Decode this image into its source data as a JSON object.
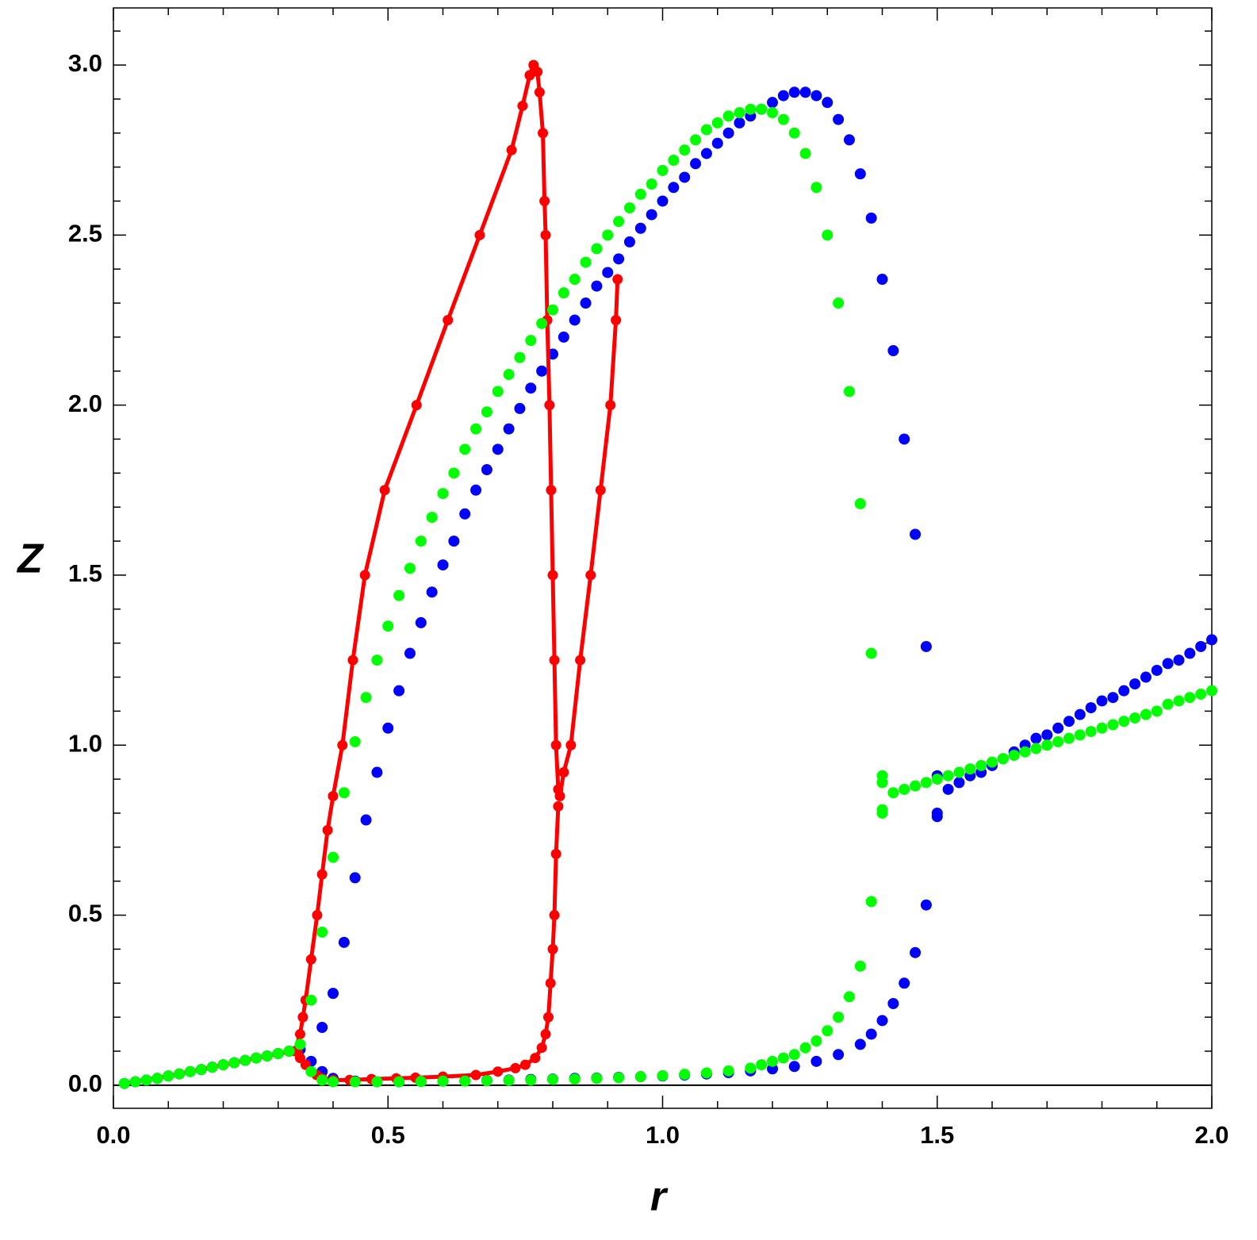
{
  "chart_data": {
    "type": "scatter",
    "x_label": "r",
    "y_label": "Z",
    "xlim": [
      0,
      2
    ],
    "ylim": [
      -0.068,
      3.168
    ],
    "xticks": [
      {
        "value": 0,
        "label": "0.0"
      },
      0.5,
      {
        "value": 1,
        "label": "1.0"
      },
      1.5,
      {
        "value": 2,
        "label": "2.0"
      }
    ],
    "yticks": [
      {
        "value": 0,
        "label": "0.0"
      },
      0.5,
      {
        "value": 1,
        "label": "1.0"
      },
      1.5,
      {
        "value": 2,
        "label": "2.0"
      },
      2.5,
      {
        "value": 3,
        "label": "3.0"
      }
    ],
    "xminor_ticks": [
      0.1,
      0.2,
      0.3,
      0.4,
      0.6,
      0.7,
      0.8,
      0.9,
      1.1,
      1.2,
      1.3,
      1.4,
      1.6,
      1.7,
      1.8,
      1.9
    ],
    "yminor_ticks": [
      0.1,
      0.2,
      0.3,
      0.4,
      0.6,
      0.7,
      0.8,
      0.9,
      1.1,
      1.2,
      1.3,
      1.4,
      1.6,
      1.7,
      1.8,
      1.9,
      2.1,
      2.2,
      2.3,
      2.4,
      2.6,
      2.7,
      2.8,
      2.9,
      3.1
    ],
    "zero_line": true,
    "series": [
      {
        "color": "#0000ff",
        "line": false,
        "x": [
          0.02,
          0.04,
          0.06,
          0.08,
          0.1,
          0.12,
          0.14,
          0.16,
          0.18,
          0.2,
          0.22,
          0.24,
          0.26,
          0.28,
          0.3,
          0.32,
          0.34,
          0.36,
          0.38,
          0.4,
          0.44,
          0.48,
          0.52,
          0.56,
          0.6,
          0.64,
          0.68,
          0.72,
          0.76,
          0.8,
          0.84,
          0.88,
          0.92,
          0.96,
          1.0,
          1.04,
          1.08,
          1.12,
          1.16,
          1.2,
          1.24,
          1.28,
          1.32,
          1.36,
          1.38,
          1.4,
          1.42,
          1.44,
          1.46,
          1.48,
          0.38,
          0.4,
          0.42,
          0.44,
          0.46,
          0.48,
          0.5,
          0.52,
          0.54,
          0.56,
          0.58,
          0.6,
          0.62,
          0.64,
          0.66,
          0.68,
          0.7,
          0.72,
          0.74,
          0.76,
          0.78,
          0.8,
          0.82,
          0.84,
          0.86,
          0.88,
          0.9,
          0.92,
          0.94,
          0.96,
          0.98,
          1.0,
          1.02,
          1.04,
          1.06,
          1.08,
          1.1,
          1.12,
          1.14,
          1.16,
          1.18,
          1.2,
          1.22,
          1.24,
          1.26,
          1.28,
          1.3,
          1.32,
          1.34,
          1.36,
          1.38,
          1.4,
          1.42,
          1.44,
          1.46,
          1.48,
          1.5,
          1.5,
          1.5,
          1.52,
          1.54,
          1.56,
          1.58,
          1.6,
          1.62,
          1.64,
          1.66,
          1.68,
          1.7,
          1.72,
          1.74,
          1.76,
          1.78,
          1.8,
          1.82,
          1.84,
          1.86,
          1.88,
          1.9,
          1.92,
          1.94,
          1.96,
          1.98,
          2.0
        ],
        "values": [
          0.005,
          0.01,
          0.015,
          0.02,
          0.027,
          0.033,
          0.04,
          0.046,
          0.053,
          0.06,
          0.066,
          0.073,
          0.08,
          0.086,
          0.093,
          0.1,
          0.105,
          0.07,
          0.04,
          0.02,
          0.012,
          0.01,
          0.01,
          0.011,
          0.012,
          0.013,
          0.014,
          0.015,
          0.017,
          0.018,
          0.02,
          0.021,
          0.023,
          0.025,
          0.027,
          0.03,
          0.033,
          0.037,
          0.042,
          0.048,
          0.055,
          0.07,
          0.09,
          0.12,
          0.15,
          0.19,
          0.24,
          0.3,
          0.39,
          0.53,
          0.17,
          0.27,
          0.42,
          0.61,
          0.78,
          0.92,
          1.05,
          1.16,
          1.27,
          1.36,
          1.45,
          1.53,
          1.6,
          1.68,
          1.75,
          1.81,
          1.87,
          1.93,
          1.99,
          2.05,
          2.1,
          2.15,
          2.2,
          2.25,
          2.3,
          2.35,
          2.39,
          2.43,
          2.48,
          2.52,
          2.56,
          2.6,
          2.64,
          2.67,
          2.71,
          2.74,
          2.77,
          2.8,
          2.83,
          2.85,
          2.87,
          2.89,
          2.91,
          2.92,
          2.92,
          2.91,
          2.89,
          2.84,
          2.78,
          2.68,
          2.55,
          2.37,
          2.16,
          1.9,
          1.62,
          1.29,
          0.91,
          0.8,
          0.79,
          0.87,
          0.89,
          0.91,
          0.92,
          0.94,
          0.96,
          0.98,
          1.0,
          1.02,
          1.03,
          1.05,
          1.07,
          1.09,
          1.11,
          1.13,
          1.14,
          1.16,
          1.18,
          1.2,
          1.22,
          1.24,
          1.25,
          1.27,
          1.29,
          1.31
        ]
      },
      {
        "color": "#ff0000",
        "line": true,
        "x": [
          0.02,
          0.06,
          0.1,
          0.14,
          0.18,
          0.22,
          0.26,
          0.3,
          0.33,
          0.34,
          0.345,
          0.35,
          0.36,
          0.371,
          0.38,
          0.39,
          0.4,
          0.417,
          0.436,
          0.458,
          0.494,
          0.552,
          0.609,
          0.667,
          0.725,
          0.745,
          0.758,
          0.765,
          0.772,
          0.776,
          0.782,
          0.785,
          0.787,
          0.79,
          0.794,
          0.797,
          0.8,
          0.803,
          0.806,
          0.81,
          0.813,
          0.82,
          0.833,
          0.85,
          0.869,
          0.887,
          0.905,
          0.915,
          0.918,
          null,
          0.81,
          0.806,
          0.803,
          0.8,
          0.796,
          0.792,
          0.787,
          0.78,
          0.768,
          0.75,
          0.732,
          0.7,
          0.66,
          0.6,
          0.55,
          0.515,
          0.47,
          0.43,
          0.4,
          0.38,
          0.37,
          0.36,
          0.35,
          0.34,
          0.335
        ],
        "values": [
          0.005,
          0.016,
          0.027,
          0.04,
          0.053,
          0.066,
          0.08,
          0.093,
          0.1,
          0.15,
          0.2,
          0.25,
          0.37,
          0.5,
          0.62,
          0.75,
          0.85,
          1.0,
          1.25,
          1.5,
          1.75,
          2.0,
          2.25,
          2.5,
          2.75,
          2.88,
          2.97,
          3.0,
          2.98,
          2.92,
          2.8,
          2.6,
          2.5,
          2.25,
          2.0,
          1.75,
          1.5,
          1.25,
          1.0,
          0.87,
          0.85,
          0.92,
          1.0,
          1.25,
          1.5,
          1.75,
          2.0,
          2.25,
          2.37,
          null,
          0.82,
          0.68,
          0.5,
          0.4,
          0.3,
          0.2,
          0.15,
          0.11,
          0.08,
          0.06,
          0.05,
          0.04,
          0.03,
          0.025,
          0.022,
          0.02,
          0.018,
          0.015,
          0.015,
          0.02,
          0.03,
          0.04,
          0.06,
          0.08,
          0.1
        ]
      },
      {
        "color": "#00ff00",
        "line": false,
        "x": [
          0.02,
          0.04,
          0.06,
          0.08,
          0.1,
          0.12,
          0.14,
          0.16,
          0.18,
          0.2,
          0.22,
          0.24,
          0.26,
          0.28,
          0.3,
          0.32,
          0.34,
          0.36,
          0.38,
          0.4,
          0.44,
          0.48,
          0.52,
          0.56,
          0.6,
          0.64,
          0.68,
          0.72,
          0.76,
          0.8,
          0.84,
          0.88,
          0.92,
          0.96,
          1.0,
          1.04,
          1.08,
          1.12,
          1.16,
          1.18,
          1.2,
          1.22,
          1.24,
          1.26,
          1.28,
          1.3,
          1.32,
          1.34,
          1.36,
          1.38,
          0.36,
          0.38,
          0.4,
          0.42,
          0.44,
          0.46,
          0.48,
          0.5,
          0.52,
          0.54,
          0.56,
          0.58,
          0.6,
          0.62,
          0.64,
          0.66,
          0.68,
          0.7,
          0.72,
          0.74,
          0.76,
          0.78,
          0.8,
          0.82,
          0.84,
          0.86,
          0.88,
          0.9,
          0.92,
          0.94,
          0.96,
          0.98,
          1.0,
          1.02,
          1.04,
          1.06,
          1.08,
          1.1,
          1.12,
          1.14,
          1.16,
          1.18,
          1.2,
          1.22,
          1.24,
          1.26,
          1.28,
          1.3,
          1.32,
          1.34,
          1.36,
          1.38,
          1.4,
          1.4,
          1.4,
          1.4,
          1.42,
          1.44,
          1.46,
          1.48,
          1.5,
          1.52,
          1.54,
          1.56,
          1.58,
          1.6,
          1.62,
          1.64,
          1.66,
          1.68,
          1.7,
          1.72,
          1.74,
          1.76,
          1.78,
          1.8,
          1.82,
          1.84,
          1.86,
          1.88,
          1.9,
          1.92,
          1.94,
          1.96,
          1.98,
          2.0
        ],
        "values": [
          0.005,
          0.01,
          0.015,
          0.02,
          0.027,
          0.033,
          0.04,
          0.046,
          0.053,
          0.06,
          0.066,
          0.073,
          0.08,
          0.086,
          0.093,
          0.1,
          0.12,
          0.04,
          0.015,
          0.01,
          0.01,
          0.01,
          0.01,
          0.011,
          0.012,
          0.012,
          0.013,
          0.014,
          0.015,
          0.017,
          0.018,
          0.02,
          0.022,
          0.025,
          0.028,
          0.032,
          0.036,
          0.042,
          0.05,
          0.06,
          0.07,
          0.08,
          0.09,
          0.11,
          0.13,
          0.16,
          0.2,
          0.26,
          0.35,
          0.54,
          0.25,
          0.45,
          0.67,
          0.86,
          1.01,
          1.14,
          1.25,
          1.35,
          1.44,
          1.52,
          1.6,
          1.67,
          1.74,
          1.8,
          1.87,
          1.93,
          1.98,
          2.04,
          2.09,
          2.14,
          2.19,
          2.24,
          2.28,
          2.33,
          2.37,
          2.42,
          2.46,
          2.5,
          2.54,
          2.58,
          2.62,
          2.65,
          2.69,
          2.72,
          2.75,
          2.78,
          2.81,
          2.83,
          2.85,
          2.86,
          2.87,
          2.87,
          2.86,
          2.84,
          2.8,
          2.74,
          2.64,
          2.5,
          2.3,
          2.04,
          1.71,
          1.27,
          0.91,
          0.89,
          0.81,
          0.8,
          0.86,
          0.87,
          0.88,
          0.89,
          0.9,
          0.91,
          0.92,
          0.93,
          0.94,
          0.95,
          0.96,
          0.97,
          0.98,
          0.99,
          1.0,
          1.01,
          1.02,
          1.03,
          1.04,
          1.05,
          1.06,
          1.07,
          1.08,
          1.09,
          1.1,
          1.12,
          1.13,
          1.14,
          1.15,
          1.16
        ]
      }
    ]
  }
}
